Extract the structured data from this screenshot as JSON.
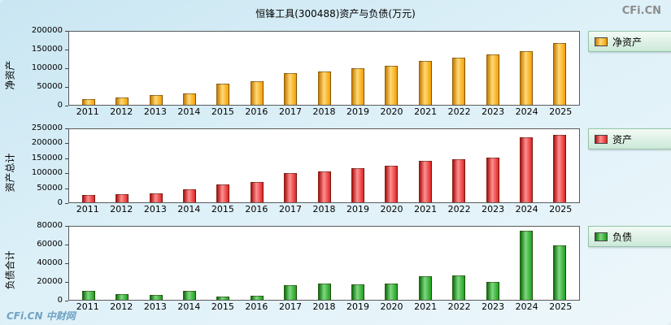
{
  "title": "恒锋工具(300488)资产与负债(万元)",
  "watermark_top_right": "CFi.CN",
  "watermark_bottom_left": "CFi.CN 中财网",
  "chart_data": [
    {
      "type": "bar",
      "ylabel": "净资产",
      "legend": "净资产",
      "legend_position": "right",
      "grid": false,
      "colors": {
        "dark": "#c47a00",
        "light": "#ffd977",
        "main": "#f5a000"
      },
      "categories": [
        "2011",
        "2012",
        "2013",
        "2014",
        "2015",
        "2016",
        "2017",
        "2018",
        "2019",
        "2020",
        "2021",
        "2022",
        "2023",
        "2024",
        "2025"
      ],
      "values": [
        16000,
        21000,
        27000,
        32000,
        57000,
        64000,
        87000,
        92000,
        101000,
        106000,
        120000,
        129000,
        138000,
        146000,
        170000
      ],
      "ylim": [
        0,
        200000
      ],
      "yticks": [
        0,
        50000,
        100000,
        150000,
        200000
      ]
    },
    {
      "type": "bar",
      "ylabel": "资产总计",
      "legend": "资产",
      "legend_position": "right",
      "grid": false,
      "colors": {
        "dark": "#a81010",
        "light": "#ff9090",
        "main": "#e02424"
      },
      "categories": [
        "2011",
        "2012",
        "2013",
        "2014",
        "2015",
        "2016",
        "2017",
        "2018",
        "2019",
        "2020",
        "2021",
        "2022",
        "2023",
        "2024",
        "2025"
      ],
      "values": [
        25000,
        28000,
        31000,
        44000,
        61000,
        70000,
        100000,
        106000,
        117000,
        125000,
        142000,
        147000,
        153000,
        222000,
        231000
      ],
      "ylim": [
        0,
        250000
      ],
      "yticks": [
        0,
        50000,
        100000,
        150000,
        200000,
        250000
      ]
    },
    {
      "type": "bar",
      "ylabel": "负债合计",
      "legend": "负债",
      "legend_position": "right",
      "grid": false,
      "colors": {
        "dark": "#0e6e0e",
        "light": "#7fd87f",
        "main": "#1fa01f"
      },
      "categories": [
        "2011",
        "2012",
        "2013",
        "2014",
        "2015",
        "2016",
        "2017",
        "2018",
        "2019",
        "2020",
        "2021",
        "2022",
        "2023",
        "2024",
        "2025"
      ],
      "values": [
        10000,
        6500,
        5500,
        10000,
        3700,
        4600,
        16000,
        17500,
        16500,
        18000,
        26000,
        26500,
        20000,
        76000,
        60000
      ],
      "ylim": [
        0,
        80000
      ],
      "yticks": [
        0,
        20000,
        40000,
        60000,
        80000
      ]
    }
  ]
}
